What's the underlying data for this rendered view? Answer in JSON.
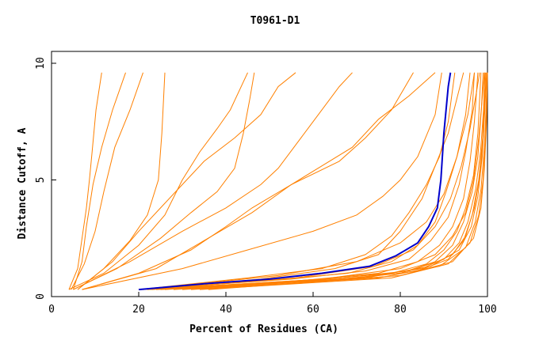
{
  "chart_data": {
    "type": "line",
    "title": "T0961-D1",
    "xlabel": "Percent of Residues (CA)",
    "ylabel": "Distance Cutoff, A",
    "xlim": [
      0,
      100
    ],
    "ylim": [
      0,
      10
    ],
    "x_ticks": [
      0,
      20,
      40,
      60,
      80,
      100
    ],
    "y_ticks": [
      0,
      5,
      10
    ],
    "grid": false,
    "colors": {
      "models": "#ff8000",
      "highlight": "#0000cc",
      "axis": "#000000"
    },
    "highlight_series": {
      "points": [
        [
          20,
          0.3
        ],
        [
          35,
          0.55
        ],
        [
          50,
          0.75
        ],
        [
          62,
          1.0
        ],
        [
          73,
          1.3
        ],
        [
          79,
          1.75
        ],
        [
          84,
          2.3
        ],
        [
          86.5,
          3.0
        ],
        [
          88.5,
          3.8
        ],
        [
          89.3,
          5
        ],
        [
          90,
          7
        ],
        [
          91,
          9
        ],
        [
          91.5,
          9.6
        ]
      ]
    },
    "model_series": [
      {
        "points": [
          [
            4,
            0.3
          ],
          [
            6,
            1.2
          ],
          [
            7,
            2.5
          ],
          [
            8,
            3.8
          ],
          [
            8.7,
            5
          ],
          [
            9.3,
            6.2
          ],
          [
            10.2,
            8
          ],
          [
            11.5,
            9.6
          ]
        ]
      },
      {
        "points": [
          [
            5,
            0.3
          ],
          [
            7,
            1.5
          ],
          [
            8,
            3
          ],
          [
            9.5,
            4.8
          ],
          [
            11.5,
            6.4
          ],
          [
            14,
            8
          ],
          [
            17,
            9.6
          ]
        ]
      },
      {
        "points": [
          [
            4.5,
            0.3
          ],
          [
            7.5,
            1.4
          ],
          [
            10,
            2.8
          ],
          [
            12,
            4.5
          ],
          [
            14.5,
            6.4
          ],
          [
            18,
            8
          ],
          [
            21,
            9.6
          ]
        ]
      },
      {
        "points": [
          [
            6,
            0.3
          ],
          [
            12,
            1.2
          ],
          [
            18,
            2.4
          ],
          [
            22,
            3.5
          ],
          [
            24.5,
            5
          ],
          [
            25.3,
            7
          ],
          [
            26,
            9.6
          ]
        ]
      },
      {
        "points": [
          [
            4,
            0.3
          ],
          [
            12,
            1.0
          ],
          [
            20,
            2.2
          ],
          [
            26,
            3.5
          ],
          [
            30,
            5
          ],
          [
            34,
            6.2
          ],
          [
            38,
            7.2
          ],
          [
            41,
            8
          ],
          [
            45,
            9.6
          ]
        ]
      },
      {
        "points": [
          [
            5,
            0.3
          ],
          [
            15,
            1.2
          ],
          [
            25,
            2.5
          ],
          [
            32,
            3.6
          ],
          [
            38,
            4.5
          ],
          [
            42,
            5.5
          ],
          [
            44,
            7
          ],
          [
            45.5,
            8.5
          ],
          [
            46.5,
            9.6
          ]
        ]
      },
      {
        "points": [
          [
            6,
            0.3
          ],
          [
            14,
            1.5
          ],
          [
            20,
            2.8
          ],
          [
            25,
            3.8
          ],
          [
            30,
            4.8
          ],
          [
            35,
            5.8
          ],
          [
            42,
            6.8
          ],
          [
            48,
            7.8
          ],
          [
            52,
            9
          ],
          [
            56,
            9.6
          ]
        ]
      },
      {
        "points": [
          [
            5,
            0.3
          ],
          [
            18,
            1.5
          ],
          [
            30,
            2.8
          ],
          [
            40,
            3.8
          ],
          [
            48,
            4.8
          ],
          [
            52,
            5.5
          ],
          [
            56,
            6.5
          ],
          [
            60,
            7.5
          ],
          [
            66,
            9
          ],
          [
            69,
            9.6
          ]
        ]
      },
      {
        "points": [
          [
            7,
            0.3
          ],
          [
            20,
            1.0
          ],
          [
            32,
            2.0
          ],
          [
            40,
            3.0
          ],
          [
            46,
            3.8
          ],
          [
            55,
            4.8
          ],
          [
            66,
            5.8
          ],
          [
            72,
            6.8
          ],
          [
            78,
            8
          ],
          [
            83,
            9.6
          ]
        ]
      },
      {
        "points": [
          [
            7,
            0.3
          ],
          [
            24,
            1.2
          ],
          [
            35,
            2.4
          ],
          [
            46,
            3.6
          ],
          [
            55,
            4.8
          ],
          [
            62,
            5.6
          ],
          [
            69,
            6.4
          ],
          [
            75,
            7.6
          ],
          [
            82,
            8.6
          ],
          [
            88,
            9.6
          ]
        ]
      },
      {
        "points": [
          [
            7,
            0.3
          ],
          [
            30,
            1.2
          ],
          [
            45,
            2.0
          ],
          [
            60,
            2.8
          ],
          [
            70,
            3.5
          ],
          [
            76,
            4.3
          ],
          [
            80,
            5.0
          ],
          [
            84,
            6.0
          ],
          [
            88,
            7.8
          ],
          [
            89.5,
            9.6
          ]
        ]
      },
      {
        "points": [
          [
            20,
            0.3
          ],
          [
            45,
            0.8
          ],
          [
            62,
            1.2
          ],
          [
            72,
            1.8
          ],
          [
            78,
            2.6
          ],
          [
            82,
            3.6
          ],
          [
            86,
            4.8
          ],
          [
            89,
            6
          ],
          [
            91,
            7.5
          ],
          [
            92.5,
            9.6
          ]
        ]
      },
      {
        "points": [
          [
            20,
            0.3
          ],
          [
            48,
            0.75
          ],
          [
            65,
            1.2
          ],
          [
            75,
            1.8
          ],
          [
            80,
            2.8
          ],
          [
            85,
            4.2
          ],
          [
            88,
            5.6
          ],
          [
            91,
            7
          ],
          [
            93,
            8.5
          ],
          [
            94.5,
            9.6
          ]
        ]
      },
      {
        "points": [
          [
            20,
            0.3
          ],
          [
            50,
            0.7
          ],
          [
            68,
            1.0
          ],
          [
            78,
            1.5
          ],
          [
            84,
            2.2
          ],
          [
            88,
            3.2
          ],
          [
            90.5,
            4.5
          ],
          [
            93,
            6
          ],
          [
            95,
            7.8
          ],
          [
            96,
            9.6
          ]
        ]
      },
      {
        "points": [
          [
            20,
            0.3
          ],
          [
            55,
            0.75
          ],
          [
            72,
            1.1
          ],
          [
            82,
            1.6
          ],
          [
            87,
            2.4
          ],
          [
            91,
            3.4
          ],
          [
            93.5,
            4.8
          ],
          [
            95,
            6.2
          ],
          [
            96.5,
            8
          ],
          [
            97,
            9.6
          ]
        ]
      },
      {
        "points": [
          [
            21,
            0.3
          ],
          [
            58,
            0.7
          ],
          [
            75,
            1.0
          ],
          [
            84,
            1.5
          ],
          [
            89,
            2.2
          ],
          [
            92,
            3.0
          ],
          [
            94.5,
            4.2
          ],
          [
            96,
            5.8
          ],
          [
            97,
            7.5
          ],
          [
            97.8,
            9.6
          ]
        ]
      },
      {
        "points": [
          [
            22,
            0.3
          ],
          [
            60,
            0.7
          ],
          [
            78,
            1.0
          ],
          [
            86,
            1.4
          ],
          [
            90,
            2.0
          ],
          [
            93,
            2.8
          ],
          [
            95,
            3.8
          ],
          [
            96.8,
            5.2
          ],
          [
            97.8,
            7
          ],
          [
            98.5,
            9.6
          ]
        ]
      },
      {
        "points": [
          [
            24,
            0.3
          ],
          [
            63,
            0.7
          ],
          [
            80,
            1.0
          ],
          [
            88,
            1.5
          ],
          [
            92,
            2.2
          ],
          [
            94.5,
            3.2
          ],
          [
            96.5,
            4.5
          ],
          [
            97.8,
            6
          ],
          [
            98.6,
            8
          ],
          [
            99,
            9.6
          ]
        ]
      },
      {
        "points": [
          [
            26,
            0.3
          ],
          [
            66,
            0.8
          ],
          [
            82,
            1.1
          ],
          [
            90,
            1.6
          ],
          [
            93.5,
            2.3
          ],
          [
            95.5,
            3.2
          ],
          [
            97.3,
            4.6
          ],
          [
            98.4,
            6.2
          ],
          [
            99.1,
            8
          ],
          [
            99.4,
            9.6
          ]
        ]
      },
      {
        "points": [
          [
            28,
            0.3
          ],
          [
            70,
            0.8
          ],
          [
            85,
            1.2
          ],
          [
            92,
            1.8
          ],
          [
            95,
            2.6
          ],
          [
            97,
            3.8
          ],
          [
            98.3,
            5.2
          ],
          [
            99.1,
            7
          ],
          [
            99.6,
            9.6
          ]
        ]
      },
      {
        "points": [
          [
            22,
            0.3
          ],
          [
            62,
            0.75
          ],
          [
            80,
            1.2
          ],
          [
            88,
            1.8
          ],
          [
            92,
            2.6
          ],
          [
            95,
            3.6
          ],
          [
            96.8,
            5
          ],
          [
            98,
            6.8
          ],
          [
            98.8,
            8.5
          ],
          [
            99.3,
            9.6
          ]
        ]
      },
      {
        "points": [
          [
            25,
            0.3
          ],
          [
            68,
            0.75
          ],
          [
            84,
            1.1
          ],
          [
            91,
            1.6
          ],
          [
            94.5,
            2.4
          ],
          [
            96.5,
            3.5
          ],
          [
            98,
            5
          ],
          [
            98.9,
            6.8
          ],
          [
            99.4,
            9.6
          ]
        ]
      },
      {
        "points": [
          [
            23,
            0.3
          ],
          [
            56,
            0.8
          ],
          [
            74,
            1.3
          ],
          [
            83,
            2.0
          ],
          [
            88,
            3.0
          ],
          [
            91.5,
            4.2
          ],
          [
            94,
            5.6
          ],
          [
            96,
            7.2
          ],
          [
            97.5,
            8.8
          ],
          [
            98.2,
            9.6
          ]
        ]
      },
      {
        "points": [
          [
            30,
            0.3
          ],
          [
            72,
            0.8
          ],
          [
            87,
            1.3
          ],
          [
            93.5,
            2.0
          ],
          [
            96.3,
            3.0
          ],
          [
            97.8,
            4.3
          ],
          [
            98.8,
            6
          ],
          [
            99.4,
            8
          ],
          [
            99.8,
            9.6
          ]
        ]
      },
      {
        "points": [
          [
            32,
            0.3
          ],
          [
            75,
            0.8
          ],
          [
            89,
            1.3
          ],
          [
            95,
            2.1
          ],
          [
            97.2,
            3.2
          ],
          [
            98.5,
            4.6
          ],
          [
            99.3,
            6.4
          ],
          [
            99.7,
            8.2
          ],
          [
            99.9,
            9.6
          ]
        ]
      },
      {
        "points": [
          [
            34,
            0.3
          ],
          [
            78,
            0.8
          ],
          [
            91,
            1.4
          ],
          [
            96,
            2.3
          ],
          [
            98,
            3.5
          ],
          [
            99,
            5
          ],
          [
            99.6,
            7
          ],
          [
            99.9,
            9.6
          ]
        ]
      },
      {
        "points": [
          [
            21,
            0.3
          ],
          [
            52,
            0.9
          ],
          [
            70,
            1.5
          ],
          [
            80,
            2.3
          ],
          [
            86,
            3.2
          ],
          [
            90,
            4.4
          ],
          [
            93,
            6
          ],
          [
            95.5,
            7.8
          ],
          [
            97,
            9.6
          ]
        ]
      },
      {
        "points": [
          [
            36,
            0.3
          ],
          [
            80,
            0.9
          ],
          [
            92,
            1.5
          ],
          [
            96.8,
            2.5
          ],
          [
            98.5,
            3.8
          ],
          [
            99.3,
            5.5
          ],
          [
            99.8,
            7.5
          ],
          [
            100,
            9.6
          ]
        ]
      }
    ]
  }
}
